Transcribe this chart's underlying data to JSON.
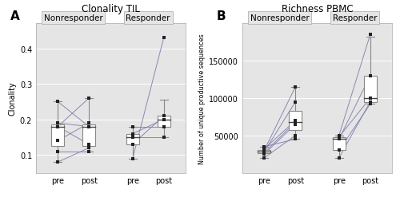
{
  "title_a": "Clonality TIL",
  "title_b": "Richness PBMC",
  "ylabel_a": "Clonality",
  "ylabel_b": "Number of unique productive sequences",
  "panel_a_label": "A",
  "panel_b_label": "B",
  "facet_labels": [
    "Nonresponder",
    "Responder"
  ],
  "xticklabels": [
    "pre",
    "post"
  ],
  "bg_color": "#e5e5e5",
  "line_color": "#7878aa",
  "box_color": "white",
  "box_edge_color": "#888888",
  "median_color": "#444444",
  "point_color": "#222222",
  "clonality_nonresponder_pre": [
    0.18,
    0.19,
    0.11,
    0.14,
    0.25,
    0.18,
    0.08
  ],
  "clonality_nonresponder_post": [
    0.26,
    0.18,
    0.11,
    0.19,
    0.18,
    0.13,
    0.12
  ],
  "clonality_responder_pre": [
    0.09,
    0.13,
    0.15,
    0.16,
    0.18
  ],
  "clonality_responder_post": [
    0.43,
    0.21,
    0.15,
    0.2,
    0.18
  ],
  "richness_nonresponder_pre": [
    30000,
    28000,
    32000,
    25000,
    27000,
    20000,
    35000
  ],
  "richness_nonresponder_post": [
    115000,
    95000,
    70000,
    65000,
    68000,
    50000,
    45000
  ],
  "richness_responder_pre": [
    50000,
    45000,
    48000,
    20000,
    30000
  ],
  "richness_responder_post": [
    185000,
    130000,
    100000,
    95000,
    92000
  ],
  "ylim_a": [
    0.05,
    0.47
  ],
  "yticks_a": [
    0.1,
    0.2,
    0.3,
    0.4
  ],
  "ylim_b": [
    0,
    200000
  ],
  "yticks_b": [
    50000,
    100000,
    150000
  ]
}
